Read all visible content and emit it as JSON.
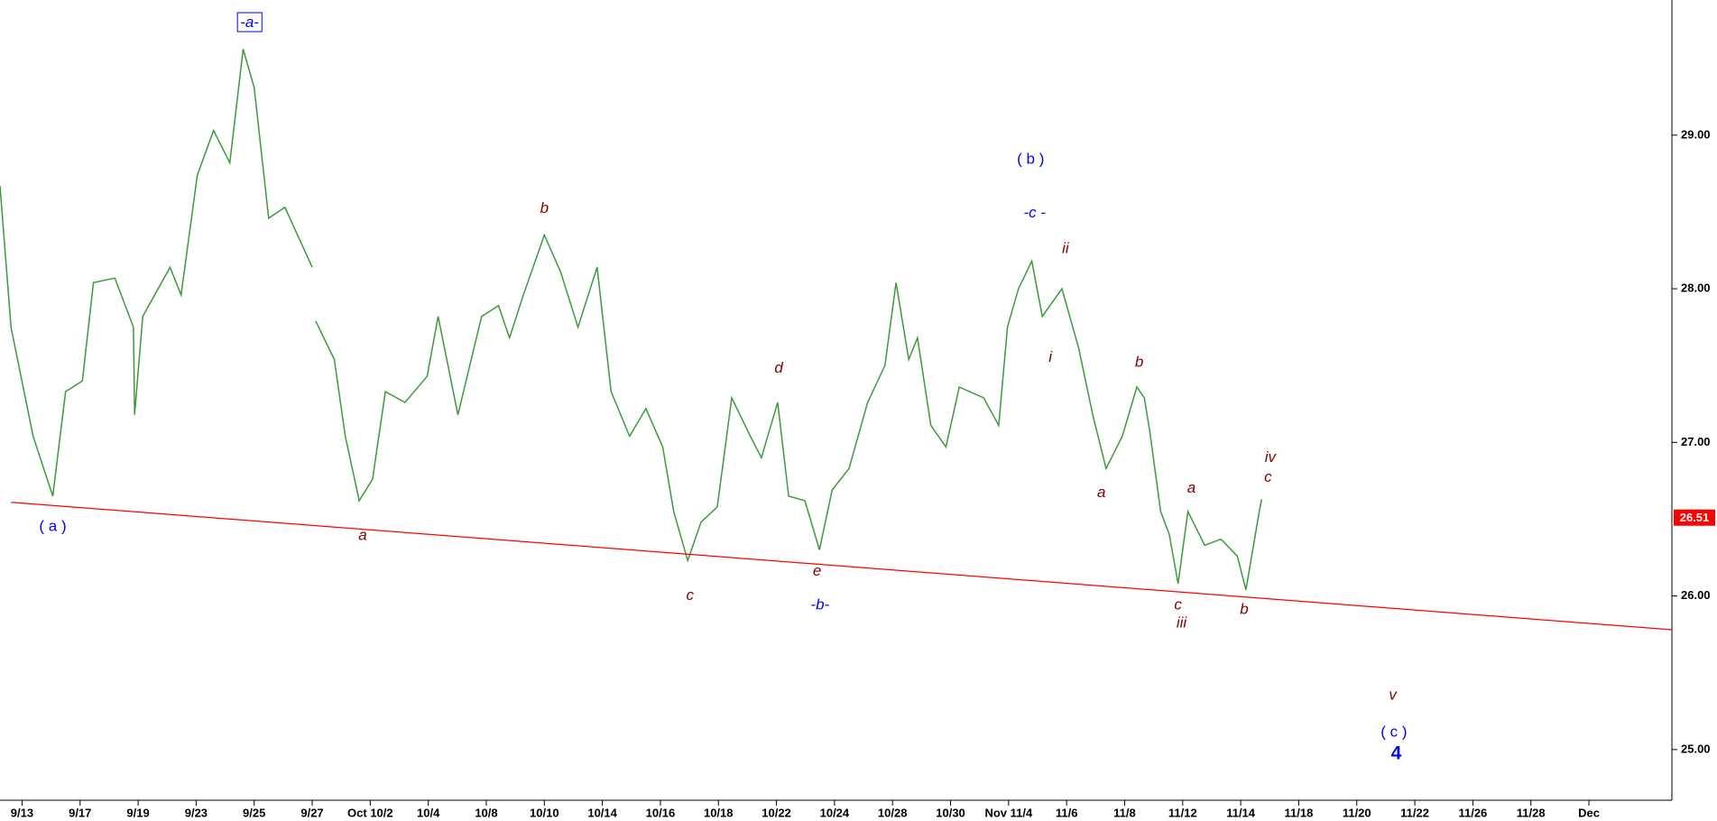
{
  "chart_data": {
    "type": "price",
    "xticks": [
      {
        "value": 0,
        "label": "9/13"
      },
      {
        "value": 1,
        "label": "9/17"
      },
      {
        "value": 2,
        "label": "9/19"
      },
      {
        "value": 3,
        "label": "9/23"
      },
      {
        "value": 4,
        "label": "9/25"
      },
      {
        "value": 5,
        "label": "9/27"
      },
      {
        "value": 6,
        "label": "Oct 10/2"
      },
      {
        "value": 7,
        "label": "10/4"
      },
      {
        "value": 8,
        "label": "10/8"
      },
      {
        "value": 9,
        "label": "10/10"
      },
      {
        "value": 10,
        "label": "10/14"
      },
      {
        "value": 11,
        "label": "10/16"
      },
      {
        "value": 12,
        "label": "10/18"
      },
      {
        "value": 13,
        "label": "10/22"
      },
      {
        "value": 14,
        "label": "10/24"
      },
      {
        "value": 15,
        "label": "10/28"
      },
      {
        "value": 16,
        "label": "10/30"
      },
      {
        "value": 17,
        "label": "Nov 11/4"
      },
      {
        "value": 18,
        "label": "11/6"
      },
      {
        "value": 19,
        "label": "11/8"
      },
      {
        "value": 20,
        "label": "11/12"
      },
      {
        "value": 21,
        "label": "11/14"
      },
      {
        "value": 22,
        "label": "11/18"
      },
      {
        "value": 23,
        "label": "11/20"
      },
      {
        "value": 24,
        "label": "11/22"
      },
      {
        "value": 25,
        "label": "11/26"
      },
      {
        "value": 26,
        "label": "11/28"
      },
      {
        "value": 27,
        "label": "Dec"
      }
    ],
    "xlim": [
      -0.38,
      28.43
    ],
    "ylim": [
      24.67,
      29.88
    ],
    "yticks": [
      {
        "value": 25,
        "label": "25.00"
      },
      {
        "value": 26,
        "label": "26.00"
      },
      {
        "value": 27,
        "label": "27.00"
      },
      {
        "value": 28,
        "label": "28.00"
      },
      {
        "value": 29,
        "label": "29.00"
      }
    ],
    "series": [
      {
        "color": "#3c9a3c",
        "x": [
          -0.38,
          -0.19,
          0.19,
          0.53,
          0.75,
          1.04,
          1.23,
          1.6,
          1.92,
          1.94,
          2.08,
          2.55,
          2.74,
          3.02,
          3.3,
          3.58,
          3.81,
          4.0,
          4.25,
          4.53,
          5.0,
          null,
          5.06,
          5.38,
          5.57,
          5.81,
          6.04,
          6.26,
          6.6,
          6.98,
          7.17,
          7.51,
          7.92,
          8.21,
          8.4,
          8.64,
          9.0,
          9.28,
          9.58,
          9.91,
          10.15,
          10.47,
          10.75,
          11.04,
          11.23,
          11.47,
          11.7,
          11.98,
          12.23,
          12.55,
          12.74,
          13.02,
          13.21,
          13.49,
          13.74,
          13.96,
          14.25,
          14.57,
          14.87,
          15.06,
          15.28,
          15.43,
          15.66,
          15.92,
          16.15,
          16.57,
          16.83,
          16.98,
          17.17,
          17.4,
          17.58,
          17.92,
          18.21,
          18.45,
          18.68,
          18.96,
          19.21,
          19.34,
          19.43,
          19.62,
          19.77,
          19.92,
          20.09,
          20.38,
          20.66,
          20.94,
          21.09,
          21.32,
          21.36
        ],
        "values": [
          28.67,
          27.75,
          27.04,
          26.65,
          27.33,
          27.4,
          28.04,
          28.07,
          27.75,
          27.18,
          27.82,
          28.14,
          27.96,
          28.74,
          29.03,
          28.82,
          29.56,
          29.31,
          28.46,
          28.53,
          28.14,
          null,
          27.79,
          27.54,
          27.04,
          26.62,
          26.76,
          27.33,
          27.26,
          27.43,
          27.82,
          27.18,
          27.82,
          27.89,
          27.68,
          27.96,
          28.35,
          28.11,
          27.75,
          28.14,
          27.33,
          27.04,
          27.22,
          26.97,
          26.55,
          26.23,
          26.48,
          26.58,
          27.29,
          27.04,
          26.9,
          27.26,
          26.65,
          26.62,
          26.3,
          26.69,
          26.83,
          27.26,
          27.5,
          28.04,
          27.54,
          27.68,
          27.11,
          26.97,
          27.36,
          27.29,
          27.11,
          27.75,
          28.0,
          28.18,
          27.82,
          28.0,
          27.61,
          27.18,
          26.83,
          27.04,
          27.36,
          27.29,
          27.08,
          26.55,
          26.4,
          26.08,
          26.55,
          26.33,
          26.37,
          26.26,
          26.04,
          26.55,
          26.63
        ]
      }
    ],
    "trendline": {
      "color": "#ff0000",
      "x": [
        -0.19,
        28.43
      ],
      "values": [
        26.61,
        25.78
      ]
    },
    "last_value": 26.51,
    "last_color": "#ff0000",
    "annotations": [
      {
        "text": "-a-",
        "x": 3.92,
        "y": 29.73,
        "color": "#0000ff",
        "italic": true,
        "boxed": true
      },
      {
        "text": "( a )",
        "x": 0.53,
        "y": 26.45,
        "color": "#0000ff",
        "italic": false
      },
      {
        "text": "a",
        "x": 5.87,
        "y": 26.39,
        "color": "#800000",
        "italic": true
      },
      {
        "text": "b",
        "x": 9.0,
        "y": 28.52,
        "color": "#800000",
        "italic": true
      },
      {
        "text": "c",
        "x": 11.51,
        "y": 26.0,
        "color": "#800000",
        "italic": true
      },
      {
        "text": "d",
        "x": 13.04,
        "y": 27.48,
        "color": "#800000",
        "italic": true
      },
      {
        "text": "e",
        "x": 13.7,
        "y": 26.16,
        "color": "#800000",
        "italic": true
      },
      {
        "text": "-b-",
        "x": 13.75,
        "y": 25.94,
        "color": "#0000ff",
        "italic": true
      },
      {
        "text": "( b )",
        "x": 17.38,
        "y": 28.84,
        "color": "#0000ff",
        "italic": false
      },
      {
        "text": "-c -",
        "x": 17.45,
        "y": 28.49,
        "color": "#0000ff",
        "italic": true
      },
      {
        "text": "ii",
        "x": 17.98,
        "y": 28.26,
        "color": "#800000",
        "italic": true
      },
      {
        "text": "i",
        "x": 17.72,
        "y": 27.55,
        "color": "#800000",
        "italic": true
      },
      {
        "text": "b",
        "x": 19.25,
        "y": 27.52,
        "color": "#800000",
        "italic": true
      },
      {
        "text": "a",
        "x": 18.6,
        "y": 26.67,
        "color": "#800000",
        "italic": true
      },
      {
        "text": "a",
        "x": 20.15,
        "y": 26.7,
        "color": "#800000",
        "italic": true
      },
      {
        "text": "iv",
        "x": 21.51,
        "y": 26.9,
        "color": "#800000",
        "italic": true
      },
      {
        "text": "c",
        "x": 21.47,
        "y": 26.77,
        "color": "#800000",
        "italic": true
      },
      {
        "text": "c",
        "x": 19.92,
        "y": 25.94,
        "color": "#800000",
        "italic": true
      },
      {
        "text": "iii",
        "x": 19.98,
        "y": 25.82,
        "color": "#800000",
        "italic": true
      },
      {
        "text": "b",
        "x": 21.06,
        "y": 25.91,
        "color": "#800000",
        "italic": true
      },
      {
        "text": "v",
        "x": 23.62,
        "y": 25.35,
        "color": "#800000",
        "italic": true
      },
      {
        "text": "( c )",
        "x": 23.64,
        "y": 25.11,
        "color": "#0000ff",
        "italic": false
      },
      {
        "text": "4",
        "x": 23.68,
        "y": 24.97,
        "color": "#0000ff",
        "italic": false,
        "large": true
      }
    ]
  }
}
